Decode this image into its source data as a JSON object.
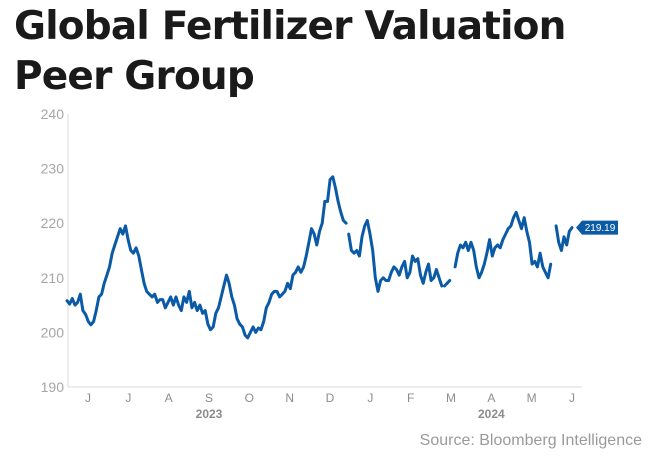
{
  "chart_data": {
    "type": "line",
    "title": "Global Fertilizer Valuation Peer Group",
    "source": "Source: Bloomberg Intelligence",
    "ylim": [
      190,
      240
    ],
    "yticks": [
      190,
      200,
      210,
      220,
      230,
      240
    ],
    "xticks": [
      "J",
      "J",
      "A",
      "S",
      "O",
      "N",
      "D",
      "J",
      "F",
      "M",
      "A",
      "M",
      "J"
    ],
    "year_labels": [
      {
        "label": "2023",
        "under_tick": 3
      },
      {
        "label": "2024",
        "under_tick": 10
      }
    ],
    "last_value_label": "219.19",
    "line_color": "#0a5aa5",
    "series": [
      {
        "segments": [
          [
            [
              0.0,
              205.8
            ],
            [
              0.05,
              205.2
            ],
            [
              0.1,
              206.2
            ],
            [
              0.15,
              205.0
            ],
            [
              0.2,
              205.5
            ],
            [
              0.25,
              207.0
            ],
            [
              0.3,
              204.0
            ],
            [
              0.35,
              203.3
            ],
            [
              0.4,
              202.0
            ],
            [
              0.45,
              201.4
            ],
            [
              0.5,
              202.0
            ],
            [
              0.55,
              204.0
            ],
            [
              0.6,
              206.5
            ],
            [
              0.65,
              207.0
            ],
            [
              0.7,
              209.0
            ],
            [
              0.75,
              210.5
            ],
            [
              0.8,
              212.0
            ],
            [
              0.85,
              214.5
            ],
            [
              0.9,
              216.0
            ],
            [
              0.95,
              217.5
            ],
            [
              1.0,
              219.0
            ],
            [
              1.05,
              218.0
            ],
            [
              1.1,
              219.5
            ],
            [
              1.15,
              217.0
            ],
            [
              1.2,
              215.0
            ],
            [
              1.25,
              214.5
            ],
            [
              1.3,
              215.5
            ],
            [
              1.35,
              214.0
            ],
            [
              1.4,
              211.5
            ],
            [
              1.45,
              209.0
            ],
            [
              1.5,
              207.5
            ],
            [
              1.55,
              207.0
            ],
            [
              1.6,
              206.5
            ],
            [
              1.65,
              207.0
            ],
            [
              1.7,
              205.5
            ],
            [
              1.75,
              206.0
            ],
            [
              1.8,
              206.0
            ],
            [
              1.85,
              204.5
            ],
            [
              1.9,
              205.5
            ],
            [
              1.95,
              206.5
            ],
            [
              2.0,
              205.0
            ],
            [
              2.05,
              206.5
            ],
            [
              2.1,
              205.0
            ],
            [
              2.15,
              204.0
            ],
            [
              2.2,
              206.5
            ],
            [
              2.25,
              205.5
            ],
            [
              2.3,
              207.5
            ],
            [
              2.35,
              204.5
            ],
            [
              2.4,
              205.5
            ],
            [
              2.45,
              204.0
            ],
            [
              2.5,
              205.0
            ],
            [
              2.55,
              203.5
            ],
            [
              2.6,
              204.0
            ],
            [
              2.65,
              201.5
            ],
            [
              2.7,
              200.5
            ],
            [
              2.75,
              201.0
            ],
            [
              2.8,
              203.5
            ],
            [
              2.85,
              204.5
            ],
            [
              2.9,
              206.5
            ],
            [
              2.95,
              208.5
            ],
            [
              3.0,
              210.5
            ],
            [
              3.05,
              209.0
            ],
            [
              3.1,
              206.5
            ],
            [
              3.15,
              205.0
            ],
            [
              3.2,
              202.5
            ],
            [
              3.25,
              201.5
            ],
            [
              3.3,
              201.0
            ],
            [
              3.35,
              199.5
            ],
            [
              3.4,
              199.0
            ],
            [
              3.45,
              200.0
            ],
            [
              3.5,
              201.0
            ],
            [
              3.55,
              200.0
            ],
            [
              3.6,
              200.8
            ],
            [
              3.65,
              200.5
            ],
            [
              3.7,
              202.0
            ],
            [
              3.75,
              204.5
            ],
            [
              3.8,
              205.5
            ],
            [
              3.85,
              207.0
            ],
            [
              3.9,
              207.5
            ],
            [
              3.95,
              207.5
            ],
            [
              4.0,
              206.5
            ],
            [
              4.05,
              207.0
            ],
            [
              4.1,
              207.5
            ],
            [
              4.15,
              209.0
            ],
            [
              4.2,
              208.0
            ],
            [
              4.25,
              210.5
            ],
            [
              4.3,
              211.0
            ],
            [
              4.35,
              212.0
            ],
            [
              4.4,
              211.0
            ],
            [
              4.45,
              212.0
            ],
            [
              4.5,
              214.0
            ],
            [
              4.55,
              216.5
            ],
            [
              4.6,
              219.0
            ],
            [
              4.65,
              218.0
            ],
            [
              4.7,
              216.0
            ],
            [
              4.75,
              218.5
            ],
            [
              4.8,
              220.0
            ],
            [
              4.85,
              224.0
            ],
            [
              4.9,
              224.0
            ],
            [
              4.95,
              228.0
            ],
            [
              5.0,
              228.5
            ],
            [
              5.05,
              226.5
            ],
            [
              5.1,
              224.0
            ],
            [
              5.15,
              222.0
            ],
            [
              5.2,
              220.5
            ],
            [
              5.25,
              220.0
            ]
          ],
          [
            [
              5.3,
              218.0
            ],
            [
              5.35,
              215.0
            ],
            [
              5.4,
              214.5
            ],
            [
              5.45,
              215.0
            ],
            [
              5.5,
              214.0
            ],
            [
              5.55,
              217.5
            ],
            [
              5.6,
              219.5
            ],
            [
              5.65,
              220.5
            ],
            [
              5.7,
              218.0
            ],
            [
              5.75,
              215.0
            ],
            [
              5.8,
              210.0
            ],
            [
              5.85,
              207.5
            ],
            [
              5.9,
              209.5
            ],
            [
              5.95,
              210.0
            ],
            [
              6.0,
              209.5
            ],
            [
              6.05,
              209.5
            ],
            [
              6.1,
              211.0
            ],
            [
              6.15,
              212.0
            ],
            [
              6.2,
              211.5
            ],
            [
              6.25,
              210.5
            ],
            [
              6.3,
              212.0
            ],
            [
              6.35,
              213.0
            ],
            [
              6.4,
              210.0
            ],
            [
              6.45,
              211.0
            ],
            [
              6.5,
              214.0
            ],
            [
              6.55,
              213.0
            ],
            [
              6.6,
              213.5
            ],
            [
              6.65,
              210.5
            ],
            [
              6.7,
              209.0
            ],
            [
              6.75,
              211.0
            ],
            [
              6.8,
              212.5
            ],
            [
              6.85,
              209.5
            ],
            [
              6.9,
              210.0
            ],
            [
              6.95,
              211.5
            ],
            [
              7.0,
              210.0
            ],
            [
              7.05,
              208.5
            ]
          ],
          [
            [
              7.1,
              208.5
            ],
            [
              7.15,
              209.0
            ],
            [
              7.2,
              209.5
            ]
          ],
          [
            [
              7.3,
              212.0
            ],
            [
              7.35,
              214.5
            ],
            [
              7.4,
              216.0
            ],
            [
              7.45,
              215.5
            ],
            [
              7.5,
              216.5
            ],
            [
              7.55,
              215.0
            ],
            [
              7.6,
              216.5
            ],
            [
              7.65,
              215.0
            ],
            [
              7.7,
              212.0
            ],
            [
              7.75,
              210.0
            ],
            [
              7.8,
              211.0
            ],
            [
              7.85,
              212.5
            ],
            [
              7.9,
              214.5
            ],
            [
              7.95,
              217.0
            ],
            [
              8.0,
              214.0
            ],
            [
              8.05,
              215.5
            ],
            [
              8.1,
              216.0
            ],
            [
              8.15,
              215.5
            ],
            [
              8.2,
              217.0
            ],
            [
              8.25,
              218.0
            ],
            [
              8.3,
              219.0
            ],
            [
              8.35,
              219.5
            ],
            [
              8.4,
              221.0
            ],
            [
              8.45,
              222.0
            ],
            [
              8.5,
              220.5
            ],
            [
              8.55,
              219.0
            ],
            [
              8.6,
              221.0
            ],
            [
              8.65,
              218.5
            ],
            [
              8.7,
              216.5
            ],
            [
              8.75,
              212.5
            ],
            [
              8.8,
              213.0
            ],
            [
              8.85,
              212.0
            ],
            [
              8.9,
              214.5
            ],
            [
              8.95,
              212.0
            ],
            [
              9.0,
              211.0
            ],
            [
              9.05,
              210.0
            ],
            [
              9.1,
              212.5
            ]
          ],
          [
            [
              9.2,
              219.5
            ],
            [
              9.25,
              216.5
            ],
            [
              9.3,
              215.0
            ],
            [
              9.35,
              217.5
            ],
            [
              9.4,
              216.0
            ],
            [
              9.45,
              218.5
            ],
            [
              9.5,
              219.19
            ]
          ]
        ]
      }
    ]
  }
}
